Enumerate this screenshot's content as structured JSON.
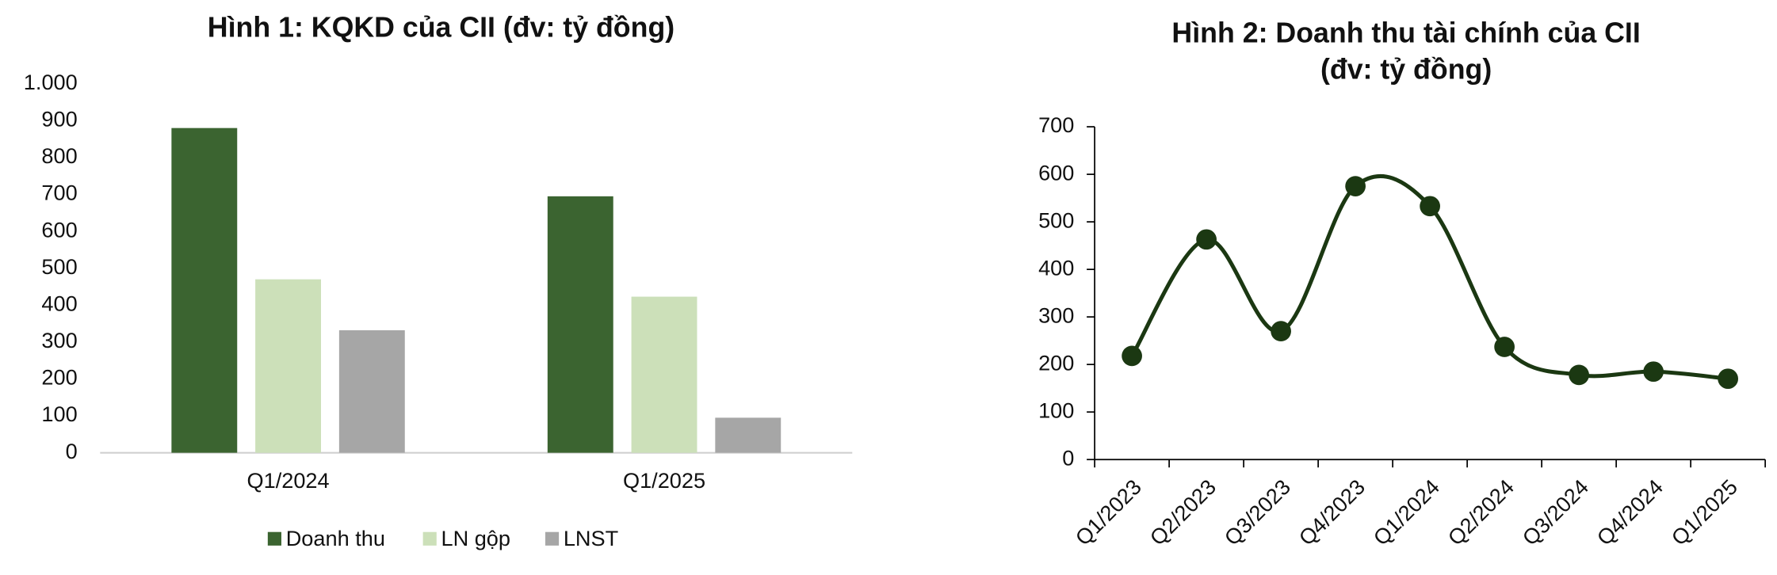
{
  "chart_data": [
    {
      "type": "bar",
      "title": [
        "Hình 1: KQKD của CII (đv: tỷ đồng)"
      ],
      "categories": [
        "Q1/2024",
        "Q1/2025"
      ],
      "series": [
        {
          "name": "Doanh thu",
          "color": "#3b6430",
          "values": [
            880,
            695
          ]
        },
        {
          "name": "LN gộp",
          "color": "#cce0b9",
          "values": [
            470,
            423
          ]
        },
        {
          "name": "LNST",
          "color": "#a6a6a6",
          "values": [
            332,
            95
          ]
        }
      ],
      "ylim": [
        0,
        1000
      ],
      "yticks": [
        0,
        100,
        200,
        300,
        400,
        500,
        600,
        700,
        800,
        900,
        {
          "value": 1000,
          "label": "1.000"
        }
      ],
      "legend": "bottom"
    },
    {
      "type": "line",
      "title": [
        "Hình 2: Doanh thu tài chính của CII",
        "(đv: tỷ đồng)"
      ],
      "categories": [
        "Q1/2023",
        "Q2/2023",
        "Q3/2023",
        "Q4/2023",
        "Q1/2024",
        "Q2/2024",
        "Q3/2024",
        "Q4/2024",
        "Q1/2025"
      ],
      "color": "#1b3812",
      "values": [
        218,
        463,
        270,
        575,
        533,
        237,
        178,
        185,
        170
      ],
      "ylim": [
        0,
        700
      ],
      "yticks": [
        0,
        100,
        200,
        300,
        400,
        500,
        600,
        700
      ],
      "smooth": true
    }
  ]
}
